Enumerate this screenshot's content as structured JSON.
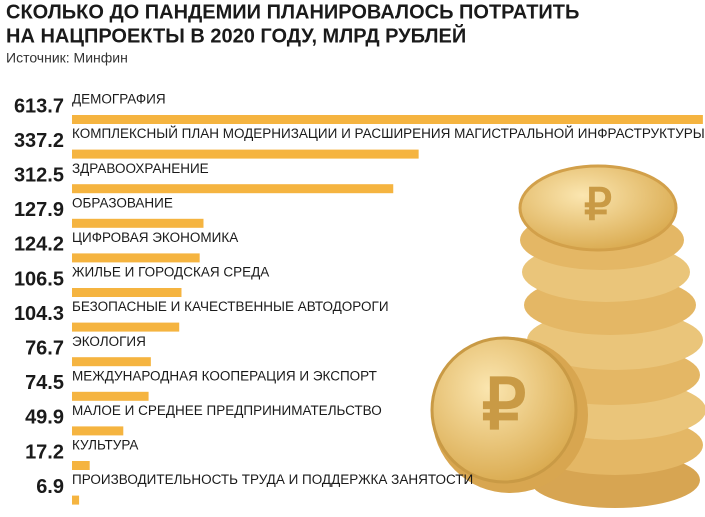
{
  "chart_data": {
    "type": "bar",
    "title": [
      "СКОЛЬКО ДО ПАНДЕМИИ ПЛАНИРОВАЛОСЬ ПОТРАТИТЬ",
      "НА НАЦПРОЕКТЫ В 2020 ГОДУ, МЛРД РУБЛЕЙ"
    ],
    "subtitle": "Источник: Минфин",
    "categories": [
      "ДЕМОГРАФИЯ",
      "КОМПЛЕКСНЫЙ ПЛАН МОДЕРНИЗАЦИИ И РАСШИРЕНИЯ МАГИСТРАЛЬНОЙ ИНФРАСТРУКТУРЫ",
      "ЗДРАВООХРАНЕНИЕ",
      "ОБРАЗОВАНИЕ",
      "ЦИФРОВАЯ ЭКОНОМИКА",
      "ЖИЛЬЕ И ГОРОДСКАЯ СРЕДА",
      "БЕЗОПАСНЫЕ И КАЧЕСТВЕННЫЕ АВТОДОРОГИ",
      "ЭКОЛОГИЯ",
      "МЕЖДУНАРОДНАЯ КООПЕРАЦИЯ И ЭКСПОРТ",
      "МАЛОЕ И СРЕДНЕЕ ПРЕДПРИНИМАТЕЛЬСТВО",
      "КУЛЬТУРА",
      "ПРОИЗВОДИТЕЛЬНОСТЬ ТРУДА И ПОДДЕРЖКА ЗАНЯТОСТИ"
    ],
    "values": [
      613.7,
      337.2,
      312.5,
      127.9,
      124.2,
      106.5,
      104.3,
      76.7,
      74.5,
      49.9,
      17.2,
      6.9
    ],
    "color": "#f5b440"
  }
}
